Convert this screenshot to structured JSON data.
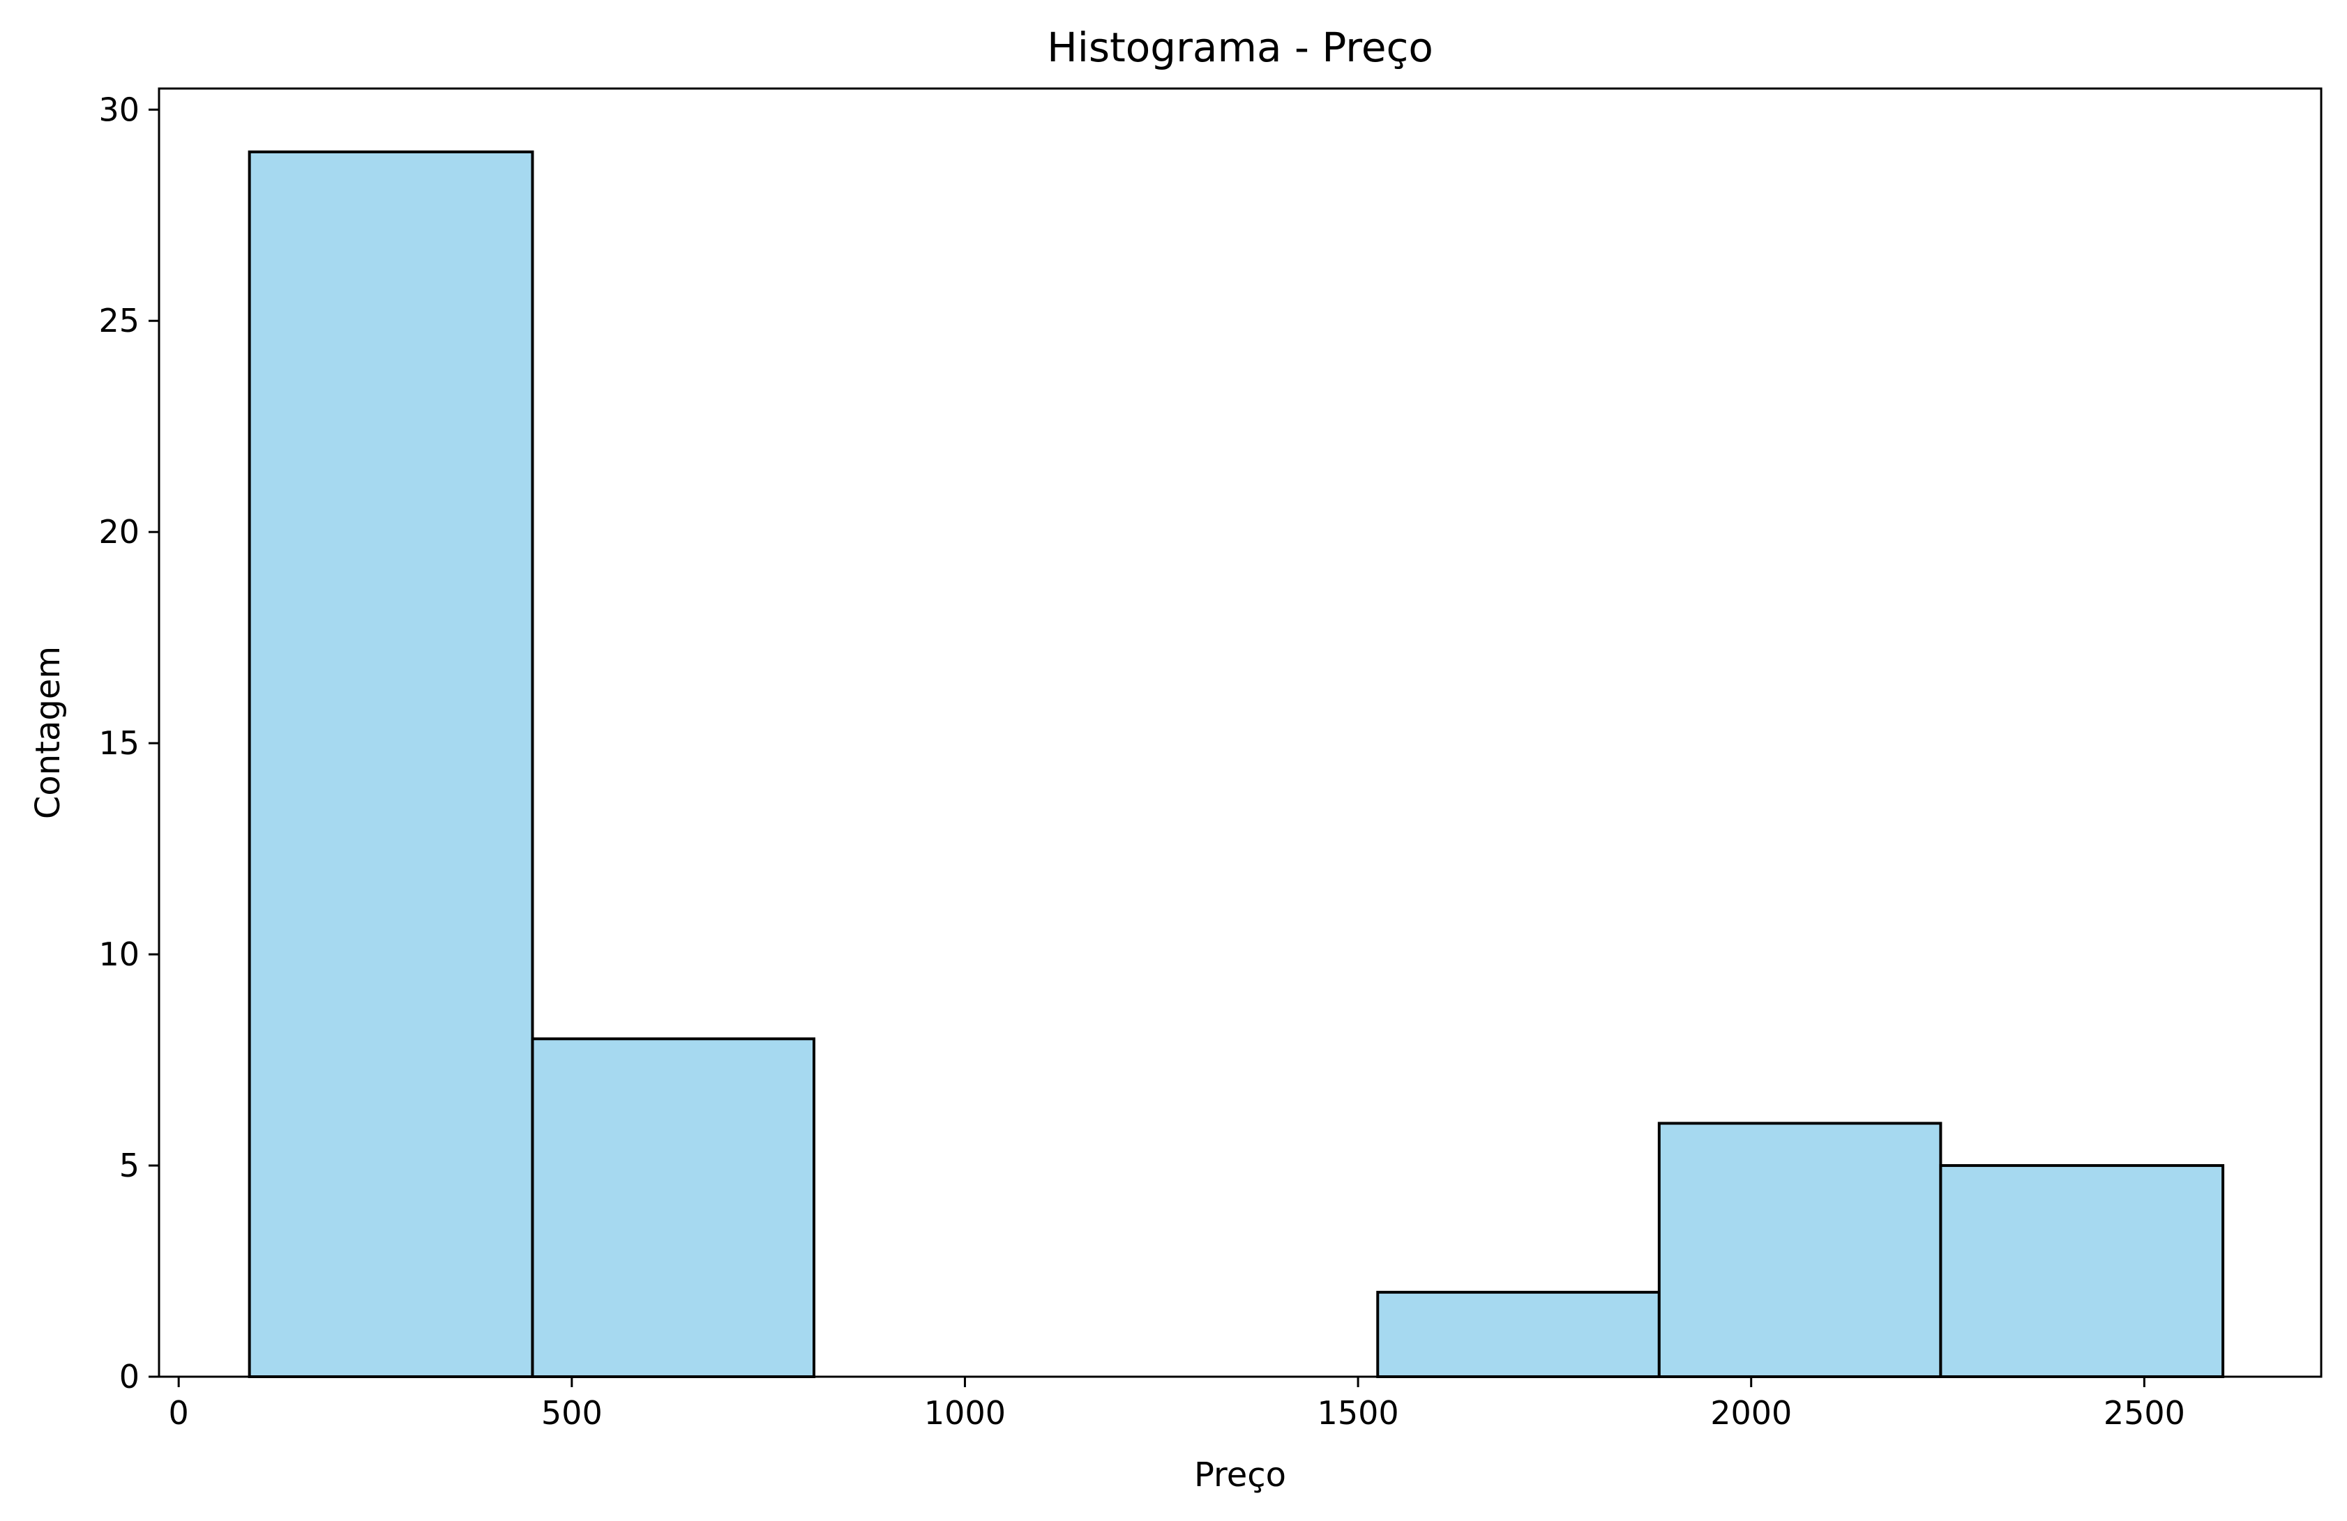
{
  "chart_data": {
    "type": "bar",
    "title": "Histograma - Preço",
    "xlabel": "Preço",
    "ylabel": "Contagem",
    "xlim": [
      -25,
      2725
    ],
    "ylim": [
      0,
      30.5
    ],
    "x_ticks": [
      0,
      500,
      1000,
      1500,
      2000,
      2500
    ],
    "y_ticks": [
      0,
      5,
      10,
      15,
      20,
      25,
      30
    ],
    "bins": [
      {
        "x0": 90,
        "x1": 450,
        "count": 29
      },
      {
        "x0": 450,
        "x1": 808,
        "count": 8
      },
      {
        "x0": 808,
        "x1": 1166,
        "count": 0
      },
      {
        "x0": 1166,
        "x1": 1525,
        "count": 0
      },
      {
        "x0": 1525,
        "x1": 1883,
        "count": 2
      },
      {
        "x0": 1883,
        "x1": 2241,
        "count": 6
      },
      {
        "x0": 2241,
        "x1": 2600,
        "count": 5
      }
    ],
    "bar_color": "#a6d9f0",
    "edge_color": "#000000",
    "grid": false,
    "legend": false
  }
}
